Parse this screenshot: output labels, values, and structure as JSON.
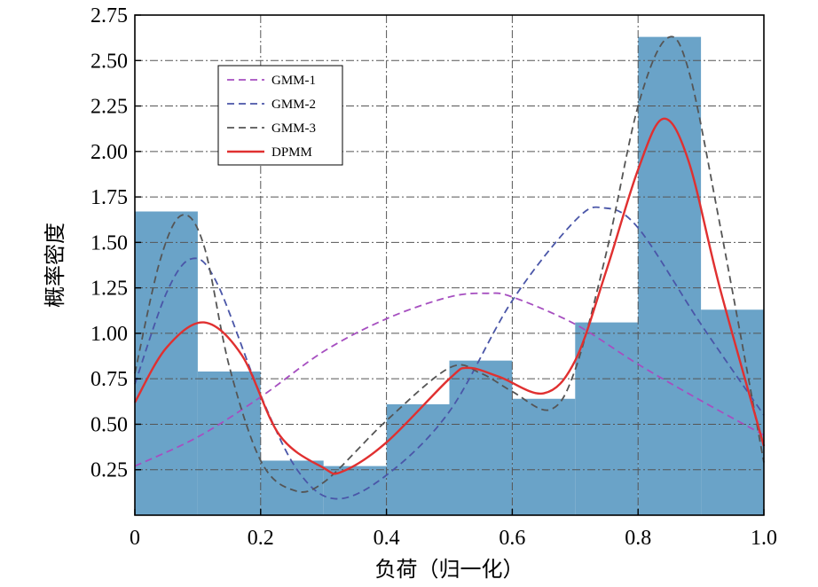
{
  "chart_data": {
    "type": "bar",
    "xlabel": "负荷（归一化）",
    "ylabel": "概率密度",
    "xlim": [
      0,
      1.0
    ],
    "ylim": [
      0,
      2.75
    ],
    "xticks": [
      "0",
      "0.2",
      "0.4",
      "0.6",
      "0.8",
      "1.0"
    ],
    "yticks": [
      "0.25",
      "0.50",
      "0.75",
      "1.00",
      "1.25",
      "1.50",
      "1.75",
      "2.00",
      "2.25",
      "2.50",
      "2.75"
    ],
    "grid": true,
    "legend_position": "top-left",
    "histogram": {
      "bin_edges": [
        0,
        0.1,
        0.2,
        0.3,
        0.4,
        0.5,
        0.6,
        0.7,
        0.8,
        0.9,
        1.0
      ],
      "values": [
        1.67,
        0.79,
        0.3,
        0.27,
        0.61,
        0.85,
        0.64,
        1.06,
        2.63,
        1.13
      ],
      "color": "#6aa3c8"
    },
    "series": [
      {
        "name": "GMM-1",
        "color": "#a64fc0",
        "dash": "dashed",
        "x": [
          0,
          0.1,
          0.2,
          0.3,
          0.4,
          0.5,
          0.56,
          0.6,
          0.7,
          0.8,
          0.9,
          1.0
        ],
        "y": [
          0.27,
          0.43,
          0.65,
          0.9,
          1.08,
          1.2,
          1.22,
          1.2,
          1.05,
          0.83,
          0.63,
          0.44
        ]
      },
      {
        "name": "GMM-2",
        "color": "#4a56a8",
        "dash": "dashed",
        "x": [
          0,
          0.05,
          0.09,
          0.13,
          0.2,
          0.26,
          0.32,
          0.4,
          0.5,
          0.6,
          0.7,
          0.745,
          0.8,
          0.9,
          1.0
        ],
        "y": [
          0.72,
          1.22,
          1.41,
          1.28,
          0.66,
          0.24,
          0.09,
          0.22,
          0.57,
          1.18,
          1.62,
          1.69,
          1.58,
          1.05,
          0.55
        ]
      },
      {
        "name": "GMM-3",
        "color": "#555555",
        "dash": "dashed",
        "x": [
          0,
          0.04,
          0.075,
          0.11,
          0.15,
          0.2,
          0.25,
          0.3,
          0.4,
          0.5,
          0.55,
          0.6,
          0.66,
          0.7,
          0.75,
          0.8,
          0.845,
          0.88,
          0.93,
          1.0
        ],
        "y": [
          0.78,
          1.4,
          1.65,
          1.48,
          0.82,
          0.3,
          0.14,
          0.18,
          0.52,
          0.81,
          0.78,
          0.68,
          0.58,
          0.8,
          1.45,
          2.25,
          2.62,
          2.45,
          1.6,
          0.29
        ]
      },
      {
        "name": "DPMM",
        "color": "#e03030",
        "dash": "solid",
        "x": [
          0,
          0.05,
          0.11,
          0.17,
          0.23,
          0.3,
          0.33,
          0.4,
          0.5,
          0.53,
          0.58,
          0.65,
          0.7,
          0.75,
          0.8,
          0.84,
          0.88,
          0.93,
          1.0
        ],
        "y": [
          0.62,
          0.92,
          1.06,
          0.88,
          0.44,
          0.26,
          0.24,
          0.4,
          0.75,
          0.81,
          0.76,
          0.67,
          0.85,
          1.35,
          1.9,
          2.18,
          1.95,
          1.25,
          0.38
        ]
      }
    ]
  }
}
